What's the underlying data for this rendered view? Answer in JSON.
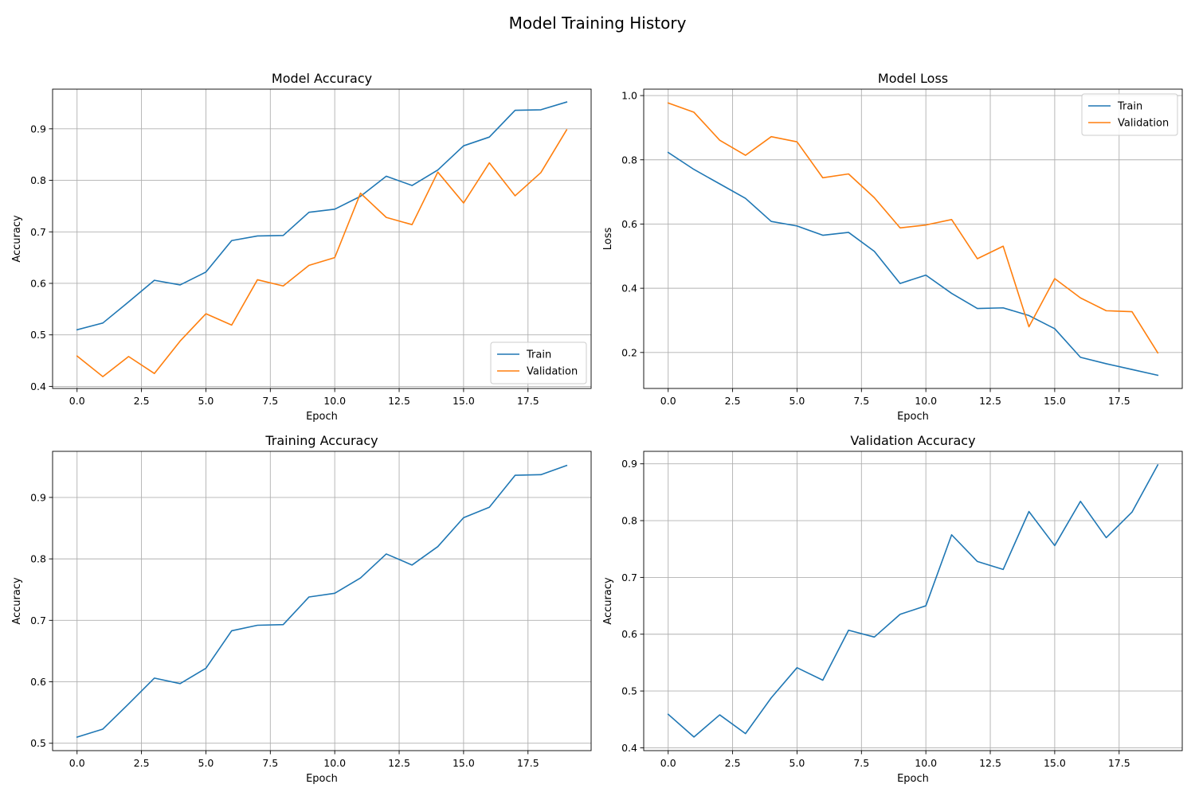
{
  "figure": {
    "title": "Model Training History"
  },
  "colors": {
    "train": "#1f77b4",
    "validation": "#ff7f0e",
    "legend_border": "#cccccc",
    "grid": "#b0b0b0"
  },
  "chart_data": [
    {
      "type": "line",
      "title": "Model Accuracy",
      "xlabel": "Epoch",
      "ylabel": "Accuracy",
      "x": [
        0,
        1,
        2,
        3,
        4,
        5,
        6,
        7,
        8,
        9,
        10,
        11,
        12,
        13,
        14,
        15,
        16,
        17,
        18,
        19
      ],
      "xlim": [
        -0.95,
        19.95
      ],
      "ylim": [
        0.396,
        0.977
      ],
      "xticks": [
        0.0,
        2.5,
        5.0,
        7.5,
        10.0,
        12.5,
        15.0,
        17.5
      ],
      "xtick_labels": [
        "0.0",
        "2.5",
        "5.0",
        "7.5",
        "10.0",
        "12.5",
        "15.0",
        "17.5"
      ],
      "yticks": [
        0.4,
        0.5,
        0.6,
        0.7,
        0.8,
        0.9
      ],
      "ytick_labels": [
        "0.4",
        "0.5",
        "0.6",
        "0.7",
        "0.8",
        "0.9"
      ],
      "grid": true,
      "legend": "lower right",
      "series": [
        {
          "name": "Train",
          "color": "#1f77b4",
          "values": [
            0.51,
            0.523,
            0.564,
            0.606,
            0.597,
            0.622,
            0.683,
            0.692,
            0.693,
            0.738,
            0.744,
            0.769,
            0.808,
            0.79,
            0.82,
            0.867,
            0.884,
            0.936,
            0.937,
            0.952
          ]
        },
        {
          "name": "Validation",
          "color": "#ff7f0e",
          "values": [
            0.459,
            0.419,
            0.458,
            0.425,
            0.488,
            0.541,
            0.519,
            0.607,
            0.595,
            0.635,
            0.65,
            0.775,
            0.728,
            0.714,
            0.816,
            0.756,
            0.834,
            0.77,
            0.815,
            0.898
          ]
        }
      ]
    },
    {
      "type": "line",
      "title": "Model Loss",
      "xlabel": "Epoch",
      "ylabel": "Loss",
      "x": [
        0,
        1,
        2,
        3,
        4,
        5,
        6,
        7,
        8,
        9,
        10,
        11,
        12,
        13,
        14,
        15,
        16,
        17,
        18,
        19
      ],
      "xlim": [
        -0.95,
        19.95
      ],
      "ylim": [
        0.088,
        1.02
      ],
      "xticks": [
        0.0,
        2.5,
        5.0,
        7.5,
        10.0,
        12.5,
        15.0,
        17.5
      ],
      "xtick_labels": [
        "0.0",
        "2.5",
        "5.0",
        "7.5",
        "10.0",
        "12.5",
        "15.0",
        "17.5"
      ],
      "yticks": [
        0.2,
        0.4,
        0.6,
        0.8,
        1.0
      ],
      "ytick_labels": [
        "0.2",
        "0.4",
        "0.6",
        "0.8",
        "1.0"
      ],
      "grid": true,
      "legend": "upper right",
      "series": [
        {
          "name": "Train",
          "color": "#1f77b4",
          "values": [
            0.823,
            0.77,
            0.725,
            0.68,
            0.608,
            0.594,
            0.565,
            0.574,
            0.515,
            0.415,
            0.441,
            0.384,
            0.337,
            0.339,
            0.315,
            0.274,
            0.185,
            0.165,
            0.147,
            0.129
          ]
        },
        {
          "name": "Validation",
          "color": "#ff7f0e",
          "values": [
            0.977,
            0.948,
            0.861,
            0.814,
            0.872,
            0.856,
            0.744,
            0.756,
            0.682,
            0.588,
            0.597,
            0.614,
            0.492,
            0.531,
            0.28,
            0.43,
            0.37,
            0.33,
            0.327,
            0.199
          ]
        }
      ]
    },
    {
      "type": "line",
      "title": "Training Accuracy",
      "xlabel": "Epoch",
      "ylabel": "Accuracy",
      "x": [
        0,
        1,
        2,
        3,
        4,
        5,
        6,
        7,
        8,
        9,
        10,
        11,
        12,
        13,
        14,
        15,
        16,
        17,
        18,
        19
      ],
      "xlim": [
        -0.95,
        19.95
      ],
      "ylim": [
        0.488,
        0.975
      ],
      "xticks": [
        0.0,
        2.5,
        5.0,
        7.5,
        10.0,
        12.5,
        15.0,
        17.5
      ],
      "xtick_labels": [
        "0.0",
        "2.5",
        "5.0",
        "7.5",
        "10.0",
        "12.5",
        "15.0",
        "17.5"
      ],
      "yticks": [
        0.5,
        0.6,
        0.7,
        0.8,
        0.9
      ],
      "ytick_labels": [
        "0.5",
        "0.6",
        "0.7",
        "0.8",
        "0.9"
      ],
      "grid": true,
      "legend": "none",
      "series": [
        {
          "color": "#1f77b4",
          "values": [
            0.51,
            0.523,
            0.564,
            0.606,
            0.597,
            0.622,
            0.683,
            0.692,
            0.693,
            0.738,
            0.744,
            0.769,
            0.808,
            0.79,
            0.82,
            0.867,
            0.884,
            0.936,
            0.937,
            0.952
          ]
        }
      ]
    },
    {
      "type": "line",
      "title": "Validation Accuracy",
      "xlabel": "Epoch",
      "ylabel": "Accuracy",
      "x": [
        0,
        1,
        2,
        3,
        4,
        5,
        6,
        7,
        8,
        9,
        10,
        11,
        12,
        13,
        14,
        15,
        16,
        17,
        18,
        19
      ],
      "xlim": [
        -0.95,
        19.95
      ],
      "ylim": [
        0.395,
        0.922
      ],
      "xticks": [
        0.0,
        2.5,
        5.0,
        7.5,
        10.0,
        12.5,
        15.0,
        17.5
      ],
      "xtick_labels": [
        "0.0",
        "2.5",
        "5.0",
        "7.5",
        "10.0",
        "12.5",
        "15.0",
        "17.5"
      ],
      "yticks": [
        0.4,
        0.5,
        0.6,
        0.7,
        0.8,
        0.9
      ],
      "ytick_labels": [
        "0.4",
        "0.5",
        "0.6",
        "0.7",
        "0.8",
        "0.9"
      ],
      "grid": true,
      "legend": "none",
      "series": [
        {
          "color": "#1f77b4",
          "values": [
            0.459,
            0.419,
            0.458,
            0.425,
            0.488,
            0.541,
            0.519,
            0.607,
            0.595,
            0.635,
            0.65,
            0.775,
            0.728,
            0.714,
            0.816,
            0.756,
            0.834,
            0.77,
            0.815,
            0.898
          ]
        }
      ]
    }
  ]
}
